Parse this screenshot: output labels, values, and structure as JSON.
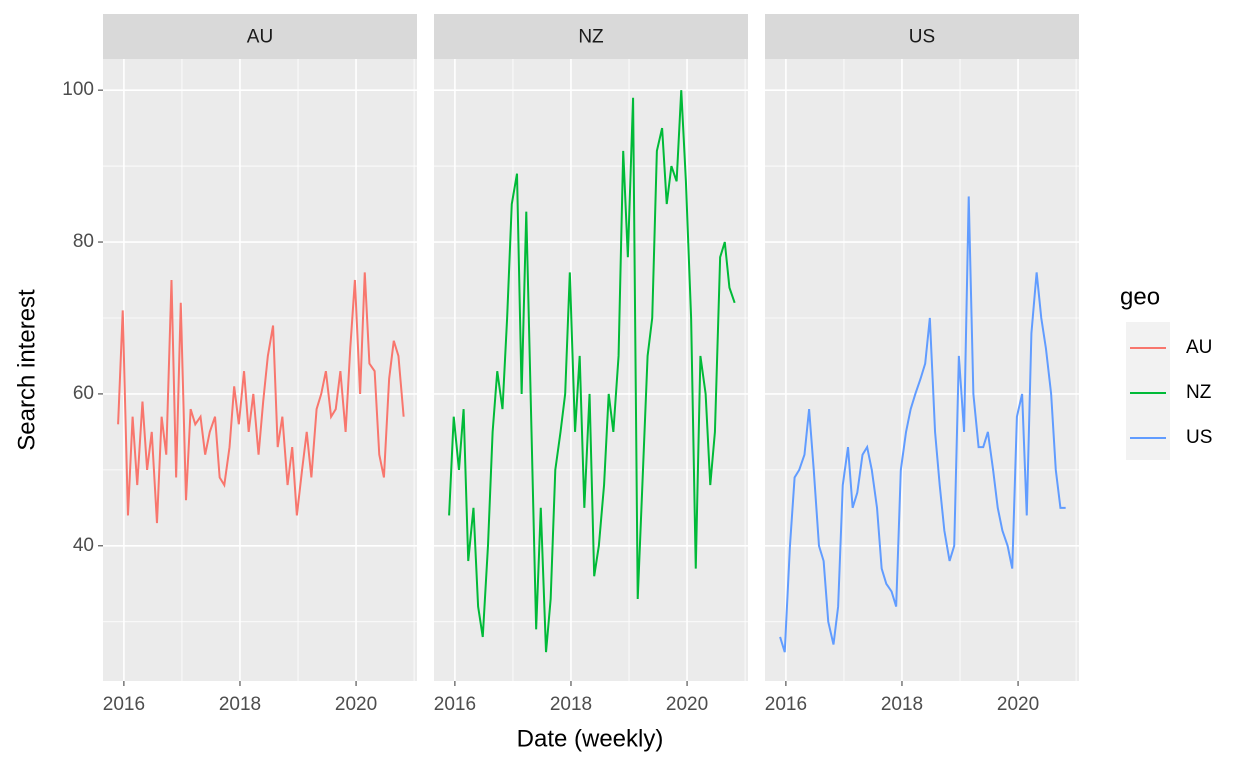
{
  "chart_data": {
    "type": "line",
    "x_label": "Date (weekly)",
    "y_label": "Search interest",
    "legend_title": "geo",
    "x": [
      2015.9,
      2015.98,
      2016.07,
      2016.15,
      2016.23,
      2016.32,
      2016.4,
      2016.48,
      2016.57,
      2016.65,
      2016.73,
      2016.82,
      2016.9,
      2016.98,
      2017.07,
      2017.15,
      2017.23,
      2017.32,
      2017.4,
      2017.48,
      2017.57,
      2017.65,
      2017.73,
      2017.82,
      2017.9,
      2017.98,
      2018.07,
      2018.15,
      2018.23,
      2018.32,
      2018.4,
      2018.48,
      2018.57,
      2018.65,
      2018.73,
      2018.82,
      2018.9,
      2018.98,
      2019.07,
      2019.15,
      2019.23,
      2019.32,
      2019.4,
      2019.48,
      2019.57,
      2019.65,
      2019.73,
      2019.82,
      2019.9,
      2019.98,
      2020.07,
      2020.15,
      2020.23,
      2020.32,
      2020.4,
      2020.48,
      2020.57,
      2020.65,
      2020.73,
      2020.82
    ],
    "series": [
      {
        "name": "AU",
        "color": "#F8766D",
        "values": [
          56,
          71,
          44,
          57,
          48,
          59,
          50,
          55,
          43,
          57,
          52,
          75,
          49,
          72,
          46,
          58,
          56,
          57,
          52,
          55,
          57,
          49,
          48,
          53,
          61,
          56,
          63,
          55,
          60,
          52,
          59,
          65,
          69,
          53,
          57,
          48,
          53,
          44,
          50,
          55,
          49,
          58,
          60,
          63,
          57,
          58,
          63,
          55,
          66,
          75,
          60,
          76,
          64,
          63,
          52,
          49,
          62,
          67,
          65,
          57
        ]
      },
      {
        "name": "NZ",
        "color": "#00BA38",
        "values": [
          44,
          57,
          50,
          58,
          38,
          45,
          32,
          28,
          40,
          55,
          63,
          58,
          70,
          85,
          89,
          60,
          84,
          55,
          29,
          45,
          26,
          33,
          50,
          55,
          60,
          76,
          55,
          65,
          45,
          60,
          36,
          40,
          48,
          60,
          55,
          65,
          92,
          78,
          99,
          33,
          48,
          65,
          70,
          92,
          95,
          85,
          90,
          88,
          100,
          88,
          70,
          37,
          65,
          60,
          48,
          55,
          78,
          80,
          74,
          72
        ]
      },
      {
        "name": "US",
        "color": "#619CFF",
        "values": [
          28,
          26,
          40,
          49,
          50,
          52,
          58,
          50,
          40,
          38,
          30,
          27,
          32,
          48,
          53,
          45,
          47,
          52,
          53,
          50,
          45,
          37,
          35,
          34,
          32,
          50,
          55,
          58,
          60,
          62,
          64,
          70,
          55,
          48,
          42,
          38,
          40,
          65,
          55,
          86,
          60,
          53,
          53,
          55,
          50,
          45,
          42,
          40,
          37,
          57,
          60,
          44,
          68,
          76,
          70,
          66,
          60,
          50,
          45,
          45
        ]
      }
    ],
    "xlim": [
      2015.64,
      2021.05
    ],
    "xticks": [
      2016,
      2018,
      2020
    ],
    "minor_xticks": [
      2017,
      2019,
      2021
    ],
    "ylim": [
      22.2,
      104.1
    ],
    "yticks": [
      40,
      60,
      80,
      100
    ],
    "minor_yticks": [
      30,
      50,
      70,
      90
    ],
    "grid": true
  }
}
